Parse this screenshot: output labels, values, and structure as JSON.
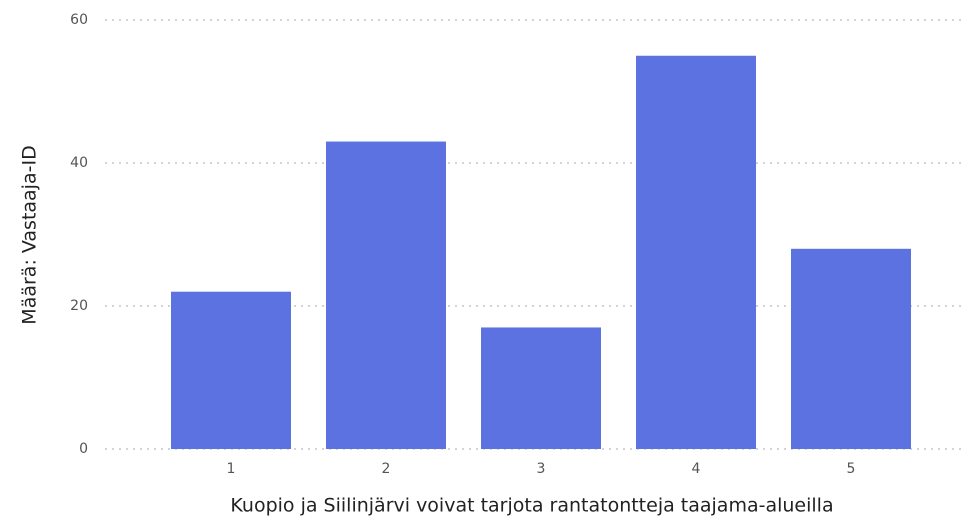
{
  "chart_data": {
    "type": "bar",
    "x_label": "Kuopio ja Siilinjärvi voivat tarjota rantatontteja taajama-alueilla",
    "y_label": "Määrä: Vastaaja-ID",
    "categories": [
      "1",
      "2",
      "3",
      "4",
      "5"
    ],
    "values": [
      22,
      43,
      17,
      55,
      28
    ],
    "color": "#5b72e0",
    "ylim": [
      0,
      60
    ],
    "yticks": [
      0,
      20,
      40,
      60
    ],
    "grid": true
  }
}
